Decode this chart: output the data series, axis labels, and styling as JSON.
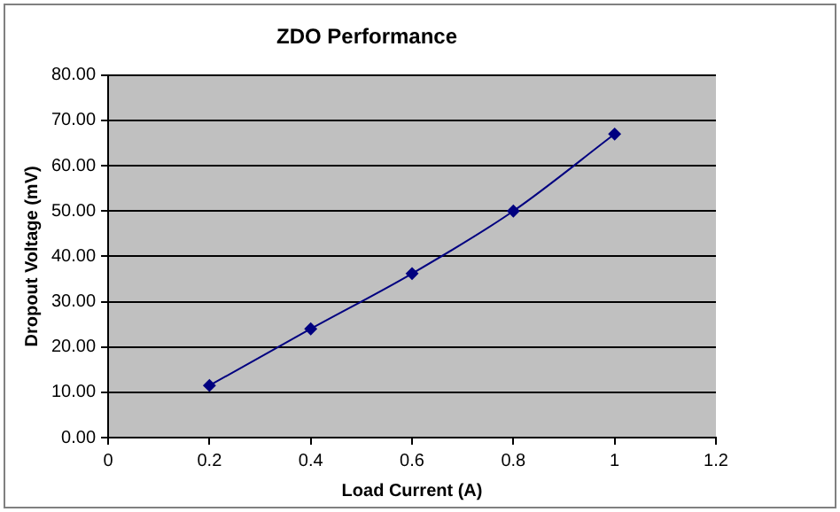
{
  "chart_data": {
    "type": "line",
    "title": "ZDO Performance",
    "xlabel": "Load Current (A)",
    "ylabel": "Dropout Voltage (mV)",
    "x": [
      0.2,
      0.4,
      0.6,
      0.8,
      1
    ],
    "series": [
      {
        "color": "#000080",
        "values": [
          11.5,
          24,
          36.2,
          50,
          67
        ]
      }
    ],
    "xlim": [
      0,
      1.2
    ],
    "xticks": [
      0,
      0.2,
      0.4,
      0.6,
      0.8,
      1,
      1.2
    ],
    "ylim": [
      0,
      80
    ],
    "yticks": [
      {
        "value": 0,
        "label": "0.00"
      },
      {
        "value": 10,
        "label": "10.00"
      },
      {
        "value": 20,
        "label": "20.00"
      },
      {
        "value": 30,
        "label": "30.00"
      },
      {
        "value": 40,
        "label": "40.00"
      },
      {
        "value": 50,
        "label": "50.00"
      },
      {
        "value": 60,
        "label": "60.00"
      },
      {
        "value": 70,
        "label": "70.00"
      },
      {
        "value": 80,
        "label": "80.00"
      }
    ],
    "grid": "y",
    "legend": false,
    "marker": "diamond",
    "line_style": "solid"
  }
}
